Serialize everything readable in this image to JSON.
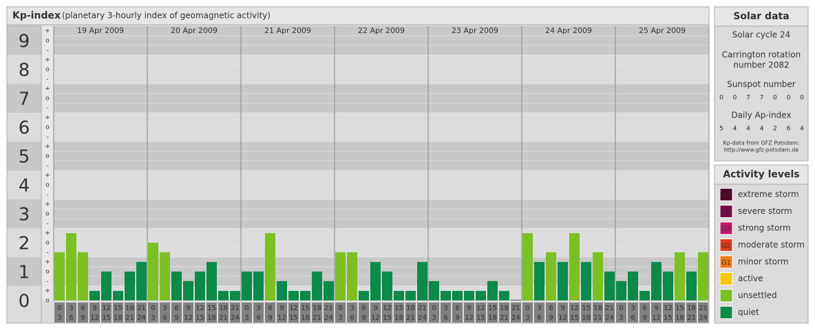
{
  "chart_data": {
    "type": "bar",
    "title": "Kp-index",
    "subtitle": "(planetary 3-hourly index of geomagnetic activity)",
    "ylim": [
      0,
      9.5
    ],
    "yticks": [
      0,
      1,
      2,
      3,
      4,
      5,
      6,
      7,
      8,
      9
    ],
    "scale_marks": [
      "-",
      "o",
      "+"
    ],
    "hours": [
      [
        "0",
        "3"
      ],
      [
        "3",
        "6"
      ],
      [
        "6",
        "9"
      ],
      [
        "9",
        "12"
      ],
      [
        "12",
        "15"
      ],
      [
        "15",
        "18"
      ],
      [
        "18",
        "21"
      ],
      [
        "21",
        "24"
      ]
    ],
    "series": [
      {
        "name": "19 Apr 2009",
        "values": [
          1.67,
          2.33,
          1.67,
          0.33,
          1,
          0.33,
          1,
          1.33
        ],
        "colors": [
          "#7cc023",
          "#7cc023",
          "#7cc023",
          "#0b8a4a",
          "#0b8a4a",
          "#0b8a4a",
          "#0b8a4a",
          "#0b8a4a"
        ]
      },
      {
        "name": "20 Apr 2009",
        "values": [
          2,
          1.67,
          1,
          0.67,
          1,
          1.33,
          0.33,
          0.33
        ],
        "colors": [
          "#7cc023",
          "#7cc023",
          "#0b8a4a",
          "#0b8a4a",
          "#0b8a4a",
          "#0b8a4a",
          "#0b8a4a",
          "#0b8a4a"
        ]
      },
      {
        "name": "21 Apr 2009",
        "values": [
          1,
          1,
          2.33,
          0.67,
          0.33,
          0.33,
          1,
          0.67
        ],
        "colors": [
          "#0b8a4a",
          "#0b8a4a",
          "#7cc023",
          "#0b8a4a",
          "#0b8a4a",
          "#0b8a4a",
          "#0b8a4a",
          "#0b8a4a"
        ]
      },
      {
        "name": "22 Apr 2009",
        "values": [
          1.67,
          1.67,
          0.33,
          1.33,
          1,
          0.33,
          0.33,
          1.33
        ],
        "colors": [
          "#7cc023",
          "#7cc023",
          "#0b8a4a",
          "#0b8a4a",
          "#0b8a4a",
          "#0b8a4a",
          "#0b8a4a",
          "#0b8a4a"
        ]
      },
      {
        "name": "23 Apr 2009",
        "values": [
          0.67,
          0.33,
          0.33,
          0.33,
          0.33,
          0.67,
          0.33,
          0
        ],
        "colors": [
          "#0b8a4a",
          "#0b8a4a",
          "#0b8a4a",
          "#0b8a4a",
          "#0b8a4a",
          "#0b8a4a",
          "#0b8a4a",
          "#0b8a4a"
        ]
      },
      {
        "name": "24 Apr 2009",
        "values": [
          2.33,
          1.33,
          1.67,
          1.33,
          2.33,
          1.33,
          1.67,
          1
        ],
        "colors": [
          "#7cc023",
          "#0b8a4a",
          "#7cc023",
          "#0b8a4a",
          "#7cc023",
          "#0b8a4a",
          "#7cc023",
          "#0b8a4a"
        ]
      },
      {
        "name": "25 Apr 2009",
        "values": [
          0.67,
          1,
          0.33,
          1.33,
          1,
          1.67,
          1,
          1.67
        ],
        "colors": [
          "#0b8a4a",
          "#0b8a4a",
          "#0b8a4a",
          "#0b8a4a",
          "#0b8a4a",
          "#7cc023",
          "#0b8a4a",
          "#7cc023"
        ]
      }
    ]
  },
  "side": {
    "solar_title": "Solar data",
    "cycle": "Solar cycle 24",
    "carrington": [
      "Carrington rotation",
      "number 2082"
    ],
    "sunspot_title": "Sunspot number",
    "sunspot": [
      "0",
      "0",
      "7",
      "7",
      "0",
      "0",
      "0"
    ],
    "ap_title": "Daily Ap-index",
    "ap": [
      "5",
      "4",
      "4",
      "4",
      "2",
      "6",
      "4"
    ],
    "source": [
      "Kp-data from GFZ Potsdam:",
      "http://www.gfz-potsdam.de"
    ],
    "levels_title": "Activity levels",
    "levels": [
      {
        "code": "G5",
        "name": "extreme storm",
        "color": "#4d0026"
      },
      {
        "code": "G4",
        "name": "severe storm",
        "color": "#7a0a45"
      },
      {
        "code": "G3",
        "name": "strong storm",
        "color": "#c0186a"
      },
      {
        "code": "G2",
        "name": "moderate storm",
        "color": "#e03a1e"
      },
      {
        "code": "G1",
        "name": "minor storm",
        "color": "#f07a10"
      },
      {
        "name": "active",
        "color": "#f8c800"
      },
      {
        "name": "unsettled",
        "color": "#7cc023"
      },
      {
        "name": "quiet",
        "color": "#0b8a4a"
      }
    ]
  }
}
